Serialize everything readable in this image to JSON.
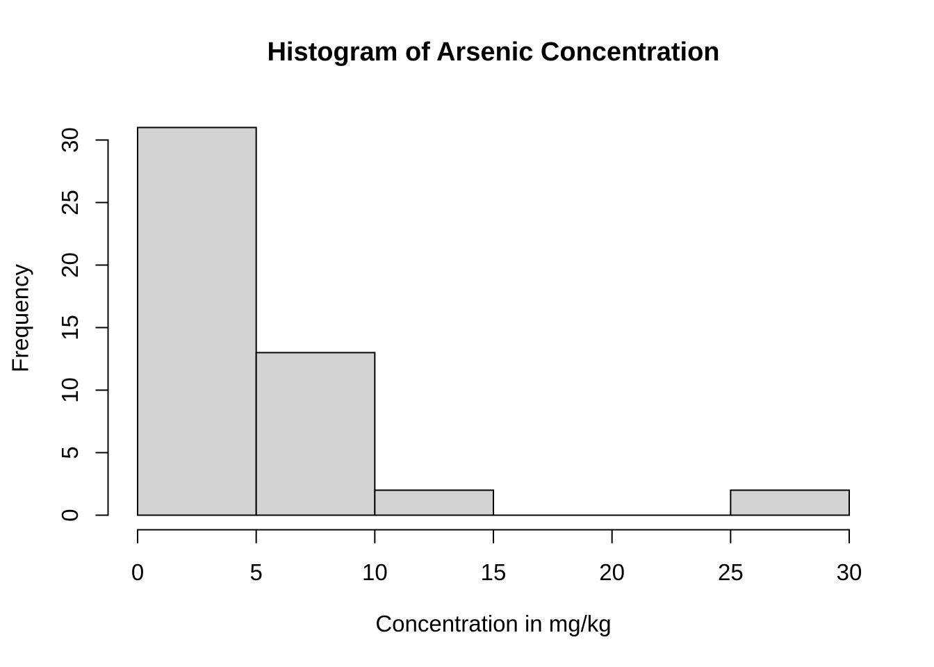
{
  "chart_data": {
    "type": "bar",
    "subtype": "histogram",
    "title": "Histogram of Arsenic Concentration",
    "xlabel": "Concentration in mg/kg",
    "ylabel": "Frequency",
    "bin_edges": [
      0,
      5,
      10,
      15,
      20,
      25,
      30
    ],
    "counts": [
      31,
      13,
      2,
      0,
      0,
      2
    ],
    "x_ticks": [
      0,
      5,
      10,
      15,
      20,
      25,
      30
    ],
    "y_ticks": [
      0,
      5,
      10,
      15,
      20,
      25,
      30
    ],
    "xlim": [
      0,
      30
    ],
    "ylim": [
      0,
      31
    ],
    "grid": false,
    "legend": false,
    "bar_fill": "#d3d3d3",
    "bar_stroke": "#000000",
    "axis_color": "#000000",
    "text_color": "#000000",
    "background": "#ffffff"
  }
}
